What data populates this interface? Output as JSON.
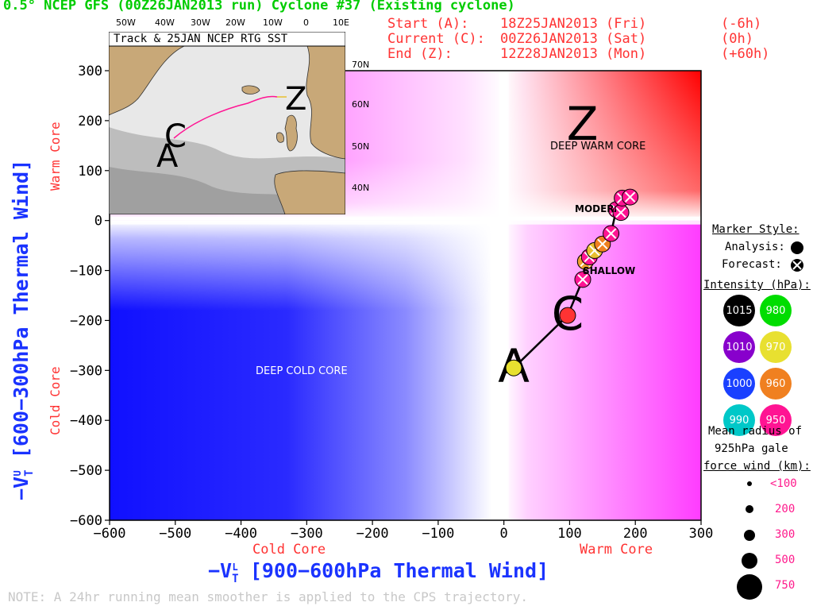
{
  "header": {
    "title": "0.5° NCEP GFS (00Z26JAN2013 run) Cyclone #37 (Existing cyclone)",
    "start": {
      "label": "Start (A):",
      "time": "18Z25JAN2013 (Fri)",
      "offset": "(-6h)"
    },
    "current": {
      "label": "Current (C):",
      "time": "00Z26JAN2013 (Sat)",
      "offset": "(0h)"
    },
    "end": {
      "label": "End (Z):",
      "time": "12Z28JAN2013 (Mon)",
      "offset": "(+60h)"
    }
  },
  "note": "NOTE:  A 24hr running mean smoother is applied to the CPS trajectory.",
  "inset": {
    "title": "Track & 25JAN NCEP RTG SST",
    "lon_labels": [
      "50W",
      "40W",
      "30W",
      "20W",
      "10W",
      "0",
      "10E"
    ],
    "lat_labels": [
      "70N",
      "60N",
      "50N",
      "40N"
    ],
    "markers": {
      "start": "A",
      "current": "C",
      "end": "Z"
    }
  },
  "legend": {
    "marker_style_title": "Marker Style:",
    "analysis_label": "Analysis:",
    "forecast_label": "Forecast:",
    "intensity_title": "Intensity (hPa):",
    "intensity": [
      {
        "label": "1015",
        "color": "#000000"
      },
      {
        "label": "980",
        "color": "#00dd00"
      },
      {
        "label": "1010",
        "color": "#8800cc"
      },
      {
        "label": "970",
        "color": "#e8e030"
      },
      {
        "label": "1000",
        "color": "#1a40ff"
      },
      {
        "label": "960",
        "color": "#f08020"
      },
      {
        "label": "990",
        "color": "#00c8c8"
      },
      {
        "label": "950",
        "color": "#ff1493"
      }
    ],
    "radius_title": [
      "Mean radius of",
      "925hPa gale",
      "force wind (km):"
    ],
    "radius_labels": [
      "<100",
      "200",
      "300",
      "500",
      "750"
    ]
  },
  "chart_data": {
    "type": "scatter",
    "title": "",
    "xlabel": "−V_T^L [900−600hPa Thermal Wind]",
    "ylabel": "−V_T^U [600−300hPa Thermal Wind]",
    "xlim": [
      -600,
      300
    ],
    "ylim": [
      -600,
      300
    ],
    "xticks": [
      -600,
      -500,
      -400,
      -300,
      -200,
      -100,
      0,
      100,
      200,
      300
    ],
    "yticks": [
      300,
      200,
      100,
      0,
      -100,
      -200,
      -300,
      -400,
      -500,
      -600
    ],
    "x_core_labels": {
      "cold": "Cold Core",
      "warm": "Warm Core"
    },
    "y_core_labels": {
      "cold": "Cold Core",
      "warm": "Warm Core"
    },
    "region_labels": {
      "deep_warm": "DEEP WARM CORE",
      "deep_cold": "DEEP COLD CORE",
      "moderate": "MODERATE",
      "shallow": "SHALLOW"
    },
    "track_letters": {
      "start": "A",
      "current": "C",
      "end": "Z"
    },
    "points": [
      {
        "x": 15,
        "y": -295,
        "color": "#e8e030",
        "style": "analysis"
      },
      {
        "x": 97,
        "y": -190,
        "color": "#ff3333",
        "style": "analysis"
      },
      {
        "x": 120,
        "y": -118,
        "color": "#ff1493",
        "style": "forecast"
      },
      {
        "x": 124,
        "y": -82,
        "color": "#f0a030",
        "style": "forecast"
      },
      {
        "x": 130,
        "y": -73,
        "color": "#ff1493",
        "style": "forecast"
      },
      {
        "x": 138,
        "y": -60,
        "color": "#e8c030",
        "style": "forecast"
      },
      {
        "x": 150,
        "y": -47,
        "color": "#f08020",
        "style": "forecast"
      },
      {
        "x": 163,
        "y": -26,
        "color": "#ff1493",
        "style": "forecast"
      },
      {
        "x": 171,
        "y": 22,
        "color": "#ff1493",
        "style": "forecast"
      },
      {
        "x": 178,
        "y": 16,
        "color": "#ff1493",
        "style": "forecast"
      },
      {
        "x": 180,
        "y": 45,
        "color": "#ff1493",
        "style": "forecast"
      },
      {
        "x": 192,
        "y": 47,
        "color": "#ff1493",
        "style": "forecast"
      }
    ]
  }
}
